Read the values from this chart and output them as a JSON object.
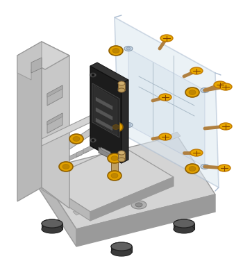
{
  "background_color": "#ffffff",
  "fig_width": 3.5,
  "fig_height": 3.86,
  "dpi": 100,
  "gray_light": "#d4d4d4",
  "gray_mid": "#b8b8b8",
  "gray_dark": "#9a9a9a",
  "gray_face": "#c8c8c8",
  "screw_shaft": "#b08040",
  "screw_head": "#e8a800",
  "screw_head_dark": "#c07800",
  "screw_cross": "#804000",
  "nut_color": "#e0a000",
  "nut_dark": "#906000",
  "magnet_top": "#606060",
  "magnet_side": "#3a3a3a",
  "magnet_edge": "#222222",
  "cover_fill": "#dce8f0",
  "cover_edge": "#aabbd0",
  "pcb_dark": "#1c1c1c",
  "pcb_edge": "#0a0a0a",
  "standoff_color": "#c0a060"
}
